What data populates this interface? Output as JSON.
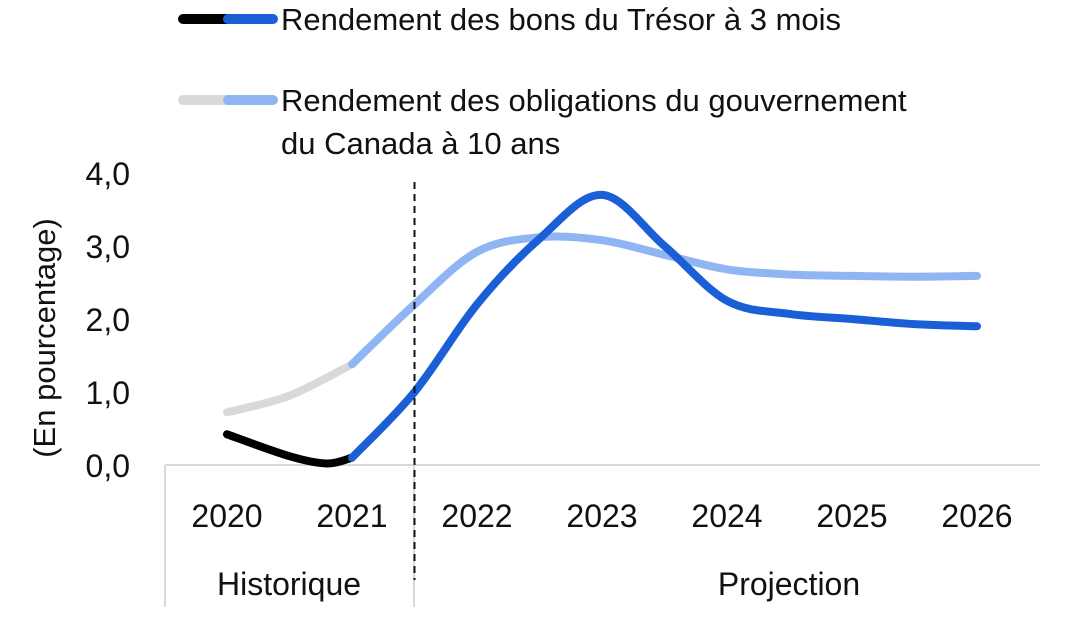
{
  "chart_data": {
    "type": "line",
    "ylabel": "(En pourcentage)",
    "ylim": [
      0,
      4
    ],
    "yticks": [
      "0,0",
      "1,0",
      "2,0",
      "3,0",
      "4,0"
    ],
    "categories": [
      "2020",
      "2021",
      "2022",
      "2023",
      "2024",
      "2025",
      "2026"
    ],
    "periods": [
      {
        "label": "Historique"
      },
      {
        "label": "Projection"
      }
    ],
    "grid": false,
    "legend_position": "top",
    "series": [
      {
        "name": "Rendement des bons du Trésor à 3 mois",
        "history_color": "#000000",
        "projection_color": "#1a5fd6",
        "points": [
          {
            "x": 2020.0,
            "y": 0.42
          },
          {
            "x": 2020.5,
            "y": 0.12
          },
          {
            "x": 2020.8,
            "y": 0.02
          },
          {
            "x": 2021.0,
            "y": 0.1
          },
          {
            "x": 2021.5,
            "y": 1.0
          },
          {
            "x": 2022.0,
            "y": 2.2
          },
          {
            "x": 2022.5,
            "y": 3.1
          },
          {
            "x": 2023.0,
            "y": 3.7
          },
          {
            "x": 2023.5,
            "y": 3.0
          },
          {
            "x": 2024.0,
            "y": 2.25
          },
          {
            "x": 2024.5,
            "y": 2.07
          },
          {
            "x": 2025.0,
            "y": 2.0
          },
          {
            "x": 2025.5,
            "y": 1.93
          },
          {
            "x": 2026.0,
            "y": 1.9
          }
        ],
        "history_end": 2021.0
      },
      {
        "name": "Rendement des obligations du gouvernement du Canada à 10 ans",
        "name_lines": [
          "Rendement des obligations du gouvernement",
          "du Canada à 10 ans"
        ],
        "history_color": "#d9d9d9",
        "projection_color": "#8fb5f3",
        "points": [
          {
            "x": 2020.0,
            "y": 0.72
          },
          {
            "x": 2020.5,
            "y": 0.95
          },
          {
            "x": 2021.0,
            "y": 1.38
          },
          {
            "x": 2021.5,
            "y": 2.2
          },
          {
            "x": 2022.0,
            "y": 2.92
          },
          {
            "x": 2022.5,
            "y": 3.12
          },
          {
            "x": 2023.0,
            "y": 3.08
          },
          {
            "x": 2023.5,
            "y": 2.88
          },
          {
            "x": 2024.0,
            "y": 2.68
          },
          {
            "x": 2024.5,
            "y": 2.61
          },
          {
            "x": 2025.0,
            "y": 2.59
          },
          {
            "x": 2025.5,
            "y": 2.58
          },
          {
            "x": 2026.0,
            "y": 2.59
          }
        ],
        "history_end": 2021.0
      }
    ],
    "divider_x": 2021.5
  }
}
